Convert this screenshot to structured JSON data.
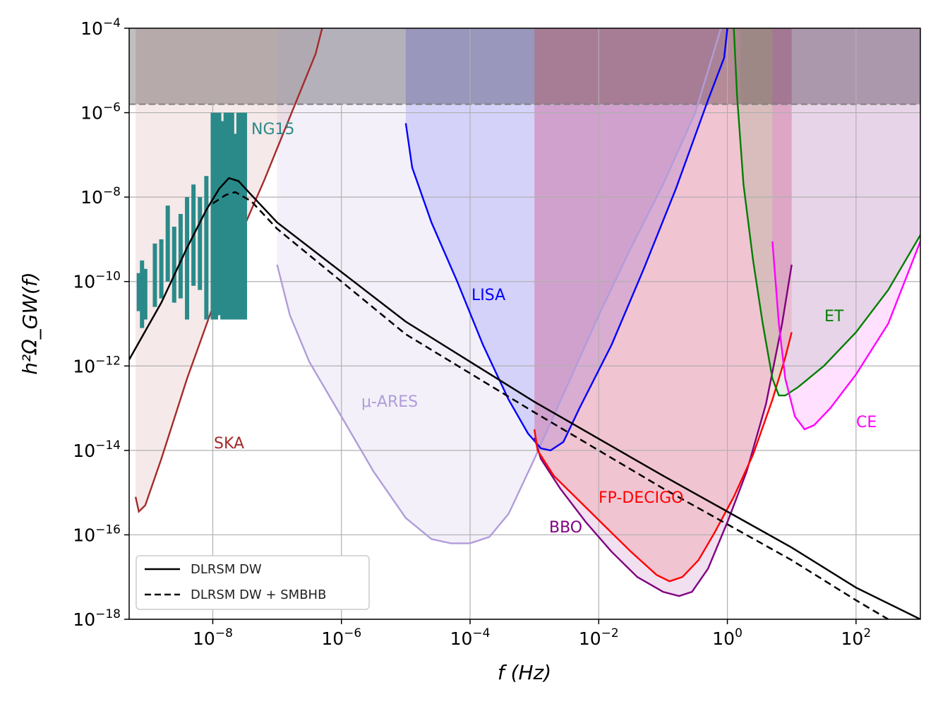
{
  "chart_data": {
    "type": "line",
    "xlabel": "f (Hz)",
    "ylabel": "h²Ω_GW(f)",
    "x_scale": "log",
    "y_scale": "log",
    "xlim_log10": [
      -9.3,
      3.0
    ],
    "ylim_log10": [
      -18,
      -4
    ],
    "grid": true,
    "x_ticks": [
      {
        "base": "10",
        "exp": "−8",
        "log10": -8
      },
      {
        "base": "10",
        "exp": "−6",
        "log10": -6
      },
      {
        "base": "10",
        "exp": "−4",
        "log10": -4
      },
      {
        "base": "10",
        "exp": "−2",
        "log10": -2
      },
      {
        "base": "10",
        "exp": "0",
        "log10": 0
      },
      {
        "base": "10",
        "exp": "2",
        "log10": 2
      }
    ],
    "y_ticks": [
      {
        "base": "10",
        "exp": "−4",
        "log10": -4
      },
      {
        "base": "10",
        "exp": "−6",
        "log10": -6
      },
      {
        "base": "10",
        "exp": "−8",
        "log10": -8
      },
      {
        "base": "10",
        "exp": "−10",
        "log10": -10
      },
      {
        "base": "10",
        "exp": "−12",
        "log10": -12
      },
      {
        "base": "10",
        "exp": "−14",
        "log10": -14
      },
      {
        "base": "10",
        "exp": "−16",
        "log10": -16
      },
      {
        "base": "10",
        "exp": "−18",
        "log10": -18
      }
    ],
    "excluded_region": {
      "y_min_log10": -5.8,
      "color": "#7f7f7f",
      "opacity": 0.5,
      "boundary_dash": true
    },
    "series": [
      {
        "name": "DLRSM DW",
        "style": "solid",
        "color": "#000000",
        "points_log10": [
          [
            -9.3,
            -11.85
          ],
          [
            -8.8,
            -10.5
          ],
          [
            -8.4,
            -9.2
          ],
          [
            -8.1,
            -8.3
          ],
          [
            -7.9,
            -7.8
          ],
          [
            -7.75,
            -7.55
          ],
          [
            -7.6,
            -7.62
          ],
          [
            -7.4,
            -7.95
          ],
          [
            -7.0,
            -8.6
          ],
          [
            -5.0,
            -10.95
          ],
          [
            -3.0,
            -12.85
          ],
          [
            -1.0,
            -14.6
          ],
          [
            0.0,
            -15.45
          ],
          [
            1.0,
            -16.3
          ],
          [
            2.0,
            -17.25
          ],
          [
            3.0,
            -18.0
          ]
        ]
      },
      {
        "name": "DLRSM DW + SMBHB",
        "style": "dashed",
        "color": "#000000",
        "points_log10": [
          [
            -8.0,
            -8.15
          ],
          [
            -7.8,
            -7.95
          ],
          [
            -7.65,
            -7.88
          ],
          [
            -7.4,
            -8.1
          ],
          [
            -7.0,
            -8.75
          ],
          [
            -5.0,
            -11.25
          ],
          [
            -3.0,
            -13.1
          ],
          [
            -1.0,
            -14.9
          ],
          [
            0.0,
            -15.75
          ],
          [
            1.0,
            -16.6
          ],
          [
            2.0,
            -17.55
          ],
          [
            2.5,
            -18.0
          ]
        ]
      }
    ],
    "sensitivity_curves": [
      {
        "name": "SKA",
        "color": "#a52a2a",
        "fill": "#a52a2a",
        "fill_opacity": 0.1,
        "fill_range_log10": [
          -9.2,
          -7.0
        ],
        "points_log10": [
          [
            -9.2,
            -15.1
          ],
          [
            -9.15,
            -15.45
          ],
          [
            -9.05,
            -15.3
          ],
          [
            -8.8,
            -14.2
          ],
          [
            -8.4,
            -12.3
          ],
          [
            -8.0,
            -10.6
          ],
          [
            -7.6,
            -9.0
          ],
          [
            -7.2,
            -7.6
          ],
          [
            -6.8,
            -6.1
          ],
          [
            -6.4,
            -4.6
          ],
          [
            -6.3,
            -4.0
          ]
        ]
      },
      {
        "name": "μ-ARES",
        "color": "#b19cd9",
        "fill": "#b19cd9",
        "fill_opacity": 0.15,
        "fill_range_log10": [
          -7.0,
          -3.0
        ],
        "points_log10": [
          [
            -7.0,
            -9.6
          ],
          [
            -6.8,
            -10.8
          ],
          [
            -6.5,
            -11.9
          ],
          [
            -6.0,
            -13.2
          ],
          [
            -5.5,
            -14.5
          ],
          [
            -5.0,
            -15.6
          ],
          [
            -4.6,
            -16.1
          ],
          [
            -4.3,
            -16.2
          ],
          [
            -4.0,
            -16.2
          ],
          [
            -3.7,
            -16.05
          ],
          [
            -3.4,
            -15.5
          ],
          [
            -3.0,
            -14.2
          ],
          [
            -2.5,
            -12.5
          ],
          [
            -2.0,
            -10.8
          ],
          [
            -1.5,
            -9.2
          ],
          [
            -1.0,
            -7.7
          ],
          [
            -0.5,
            -6.0
          ],
          [
            -0.1,
            -4.0
          ]
        ]
      },
      {
        "name": "LISA",
        "color": "#0000ff",
        "fill": "#0000ff",
        "fill_opacity": 0.12,
        "fill_range_log10": [
          -5.0,
          -3.0
        ],
        "points_log10": [
          [
            -5.0,
            -6.25
          ],
          [
            -4.9,
            -7.3
          ],
          [
            -4.6,
            -8.6
          ],
          [
            -4.2,
            -10.0
          ],
          [
            -3.8,
            -11.5
          ],
          [
            -3.4,
            -12.8
          ],
          [
            -3.1,
            -13.6
          ],
          [
            -2.9,
            -13.95
          ],
          [
            -2.75,
            -14.0
          ],
          [
            -2.55,
            -13.8
          ],
          [
            -2.3,
            -13.0
          ],
          [
            -1.8,
            -11.5
          ],
          [
            -1.3,
            -9.7
          ],
          [
            -0.8,
            -7.8
          ],
          [
            -0.3,
            -5.7
          ],
          [
            -0.05,
            -4.7
          ],
          [
            0.0,
            -4.0
          ]
        ]
      },
      {
        "name": "BBO",
        "color": "#800080",
        "fill": "#800080",
        "fill_opacity": 0.12,
        "fill_range_log10": [
          -3.0,
          1.0
        ],
        "points_log10": [
          [
            -3.0,
            -13.7
          ],
          [
            -2.9,
            -14.2
          ],
          [
            -2.6,
            -14.9
          ],
          [
            -2.2,
            -15.7
          ],
          [
            -1.8,
            -16.4
          ],
          [
            -1.4,
            -17.0
          ],
          [
            -1.0,
            -17.35
          ],
          [
            -0.75,
            -17.45
          ],
          [
            -0.55,
            -17.35
          ],
          [
            -0.3,
            -16.8
          ],
          [
            0.0,
            -15.7
          ],
          [
            0.3,
            -14.5
          ],
          [
            0.6,
            -12.9
          ],
          [
            0.85,
            -11.0
          ],
          [
            1.0,
            -9.6
          ]
        ]
      },
      {
        "name": "FP-DECIGO",
        "color": "#ff0000",
        "fill": "#ff0000",
        "fill_opacity": 0.12,
        "fill_range_log10": [
          -3.0,
          1.0
        ],
        "points_log10": [
          [
            -3.0,
            -13.5
          ],
          [
            -2.95,
            -14.0
          ],
          [
            -2.7,
            -14.6
          ],
          [
            -2.3,
            -15.2
          ],
          [
            -1.9,
            -15.8
          ],
          [
            -1.5,
            -16.4
          ],
          [
            -1.1,
            -16.95
          ],
          [
            -0.9,
            -17.1
          ],
          [
            -0.7,
            -17.0
          ],
          [
            -0.45,
            -16.6
          ],
          [
            -0.2,
            -15.95
          ],
          [
            0.1,
            -15.1
          ],
          [
            0.4,
            -14.1
          ],
          [
            0.7,
            -12.8
          ],
          [
            0.9,
            -11.8
          ],
          [
            1.0,
            -11.2
          ]
        ]
      },
      {
        "name": "ET",
        "color": "#007f00",
        "fill": "#007f00",
        "fill_opacity": 0.1,
        "fill_range_log10": [
          0.2,
          3.0
        ],
        "points_log10": [
          [
            0.1,
            -4.0
          ],
          [
            0.15,
            -5.6
          ],
          [
            0.25,
            -7.7
          ],
          [
            0.4,
            -9.5
          ],
          [
            0.55,
            -11.0
          ],
          [
            0.7,
            -12.3
          ],
          [
            0.8,
            -12.7
          ],
          [
            0.9,
            -12.7
          ],
          [
            1.1,
            -12.5
          ],
          [
            1.5,
            -12.0
          ],
          [
            2.0,
            -11.2
          ],
          [
            2.5,
            -10.2
          ],
          [
            3.0,
            -8.9
          ]
        ]
      },
      {
        "name": "CE",
        "color": "#ff00ff",
        "fill": "#ff00ff",
        "fill_opacity": 0.12,
        "fill_range_log10": [
          0.7,
          3.0
        ],
        "points_log10": [
          [
            0.7,
            -9.05
          ],
          [
            0.8,
            -11.0
          ],
          [
            0.9,
            -12.3
          ],
          [
            1.05,
            -13.2
          ],
          [
            1.2,
            -13.5
          ],
          [
            1.35,
            -13.4
          ],
          [
            1.6,
            -13.0
          ],
          [
            2.0,
            -12.2
          ],
          [
            2.5,
            -11.0
          ],
          [
            3.0,
            -9.05
          ]
        ]
      }
    ],
    "ng15": {
      "name": "NG15",
      "color": "#2a8a8a",
      "bars": [
        [
          -9.15,
          -10.7,
          -9.8
        ],
        [
          -9.1,
          -11.1,
          -9.5
        ],
        [
          -9.05,
          -10.9,
          -9.7
        ],
        [
          -8.9,
          -10.6,
          -9.1
        ],
        [
          -8.8,
          -10.4,
          -9.0
        ],
        [
          -8.7,
          -10.0,
          -8.2
        ],
        [
          -8.6,
          -10.5,
          -8.7
        ],
        [
          -8.5,
          -10.4,
          -8.4
        ],
        [
          -8.4,
          -10.9,
          -8.0
        ],
        [
          -8.3,
          -10.1,
          -7.7
        ],
        [
          -8.2,
          -10.2,
          -8.0
        ],
        [
          -8.1,
          -10.9,
          -7.5
        ],
        [
          -8.0,
          -10.9,
          -6.0
        ],
        [
          -7.95,
          -10.9,
          -6.0
        ],
        [
          -7.9,
          -10.8,
          -6.0
        ],
        [
          -7.85,
          -10.9,
          -6.2
        ],
        [
          -7.8,
          -10.9,
          -6.0
        ],
        [
          -7.75,
          -10.9,
          -6.0
        ],
        [
          -7.7,
          -10.9,
          -6.0
        ],
        [
          -7.65,
          -10.9,
          -6.5
        ],
        [
          -7.6,
          -10.9,
          -6.0
        ],
        [
          -7.55,
          -10.9,
          -6.0
        ],
        [
          -7.5,
          -10.9,
          -6.0
        ]
      ]
    },
    "legend": {
      "position": "lower-left",
      "entries": [
        {
          "label": "DLRSM DW",
          "style": "solid"
        },
        {
          "label": "DLRSM DW + SMBHB",
          "style": "dashed"
        }
      ]
    }
  }
}
